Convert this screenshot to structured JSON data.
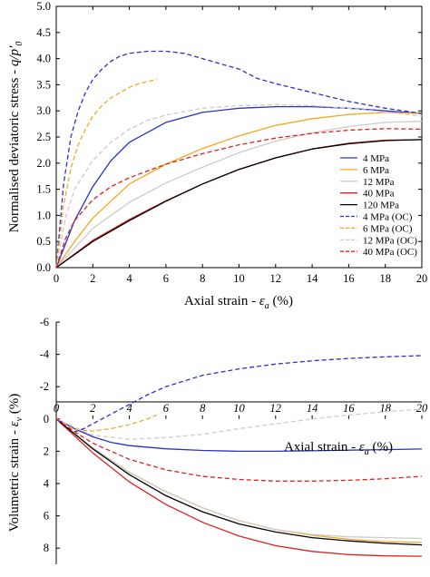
{
  "chart_data": [
    {
      "type": "line",
      "ylabel": "Normalised deviatoric stress - q/p'0",
      "ylabel_parts": {
        "prefix": "Normalised deviatoric stress - ",
        "var": "q/p′",
        "sub": "0"
      },
      "xlabel": "Axial strain - εa (%)",
      "xlabel_parts": {
        "prefix": "Axial strain - ",
        "var": "ε",
        "sub": "a",
        "suffix": " (%)"
      },
      "xlim": [
        0,
        20
      ],
      "ylim": [
        0,
        5
      ],
      "xticks": [
        "0",
        "2",
        "4",
        "6",
        "8",
        "10",
        "12",
        "14",
        "16",
        "18",
        "20"
      ],
      "yticks": [
        "0.0",
        "0.5",
        "1.0",
        "1.5",
        "2.0",
        "2.5",
        "3.0",
        "3.5",
        "4.0",
        "4.5",
        "5.0"
      ],
      "legend_position": "right",
      "series": [
        {
          "name": "4 MPa",
          "color": "#2a32c8",
          "dash": false,
          "x": [
            0,
            0.5,
            1,
            2,
            3,
            4,
            6,
            8,
            10,
            12,
            14,
            16,
            18,
            20
          ],
          "y": [
            0,
            0.45,
            0.9,
            1.55,
            2.05,
            2.4,
            2.78,
            2.97,
            3.05,
            3.08,
            3.08,
            3.05,
            3.0,
            2.95
          ]
        },
        {
          "name": "6 MPa",
          "color": "#f5a623",
          "dash": false,
          "x": [
            0,
            1,
            2,
            4,
            6,
            8,
            10,
            12,
            14,
            16,
            18,
            20
          ],
          "y": [
            0,
            0.5,
            0.95,
            1.6,
            1.98,
            2.28,
            2.52,
            2.72,
            2.85,
            2.93,
            2.97,
            2.95
          ]
        },
        {
          "name": "12 MPa",
          "color": "#cccccc",
          "dash": false,
          "x": [
            0,
            2,
            4,
            6,
            8,
            10,
            12,
            14,
            16,
            18,
            20
          ],
          "y": [
            0,
            0.75,
            1.25,
            1.62,
            1.92,
            2.2,
            2.42,
            2.58,
            2.7,
            2.78,
            2.8
          ]
        },
        {
          "name": "40 MPa",
          "color": "#e02020",
          "dash": false,
          "x": [
            0,
            2,
            4,
            6,
            8,
            10,
            12,
            14,
            16,
            18,
            20
          ],
          "y": [
            0,
            0.52,
            0.92,
            1.28,
            1.6,
            1.88,
            2.1,
            2.27,
            2.38,
            2.44,
            2.45
          ]
        },
        {
          "name": "120 MPa",
          "color": "#000000",
          "dash": false,
          "x": [
            0,
            2,
            4,
            6,
            8,
            10,
            12,
            14,
            16,
            18,
            20
          ],
          "y": [
            0,
            0.5,
            0.9,
            1.27,
            1.6,
            1.88,
            2.1,
            2.27,
            2.37,
            2.43,
            2.45
          ]
        },
        {
          "name": "4 MPa (OC)",
          "color": "#2a32c8",
          "dash": true,
          "x": [
            0,
            0.4,
            0.8,
            1.2,
            1.6,
            2,
            2.5,
            3,
            3.5,
            4,
            5,
            6,
            7,
            8,
            9,
            10,
            11,
            12,
            14,
            16,
            18,
            20
          ],
          "y": [
            0,
            1.6,
            2.5,
            3.0,
            3.35,
            3.6,
            3.8,
            3.95,
            4.05,
            4.1,
            4.14,
            4.14,
            4.1,
            4.0,
            3.9,
            3.8,
            3.62,
            3.52,
            3.35,
            3.18,
            3.05,
            2.95
          ]
        },
        {
          "name": "6 MPa (OC)",
          "color": "#f5a623",
          "dash": true,
          "x": [
            0,
            0.4,
            0.8,
            1.2,
            1.6,
            2,
            2.5,
            3,
            3.5,
            4,
            4.5,
            5,
            5.5
          ],
          "y": [
            0,
            1.2,
            1.9,
            2.35,
            2.65,
            2.9,
            3.1,
            3.25,
            3.35,
            3.45,
            3.52,
            3.56,
            3.6
          ]
        },
        {
          "name": "12 MPa (OC)",
          "color": "#cccccc",
          "dash": true,
          "x": [
            0,
            0.5,
            1,
            2,
            3,
            4,
            5,
            6,
            8,
            10,
            12,
            14,
            16,
            18,
            20
          ],
          "y": [
            0,
            0.95,
            1.5,
            2.05,
            2.4,
            2.65,
            2.82,
            2.92,
            3.05,
            3.1,
            3.12,
            3.1,
            3.05,
            2.98,
            2.9
          ]
        },
        {
          "name": "40 MPa (OC)",
          "color": "#e02020",
          "dash": true,
          "x": [
            0,
            0.5,
            1,
            2,
            3,
            4,
            6,
            8,
            10,
            12,
            14,
            16,
            18,
            20
          ],
          "y": [
            0,
            0.55,
            0.9,
            1.3,
            1.55,
            1.72,
            1.98,
            2.18,
            2.35,
            2.48,
            2.57,
            2.63,
            2.66,
            2.65
          ]
        }
      ]
    },
    {
      "type": "line",
      "ylabel": "Volumetric strain - εv (%)",
      "ylabel_parts": {
        "prefix": "Volumetric strain - ",
        "var": "ε",
        "sub": "v",
        "suffix": " (%)"
      },
      "xlabel": "Axial strain - εa (%)",
      "xlabel_parts": {
        "prefix": "Axial strain - ",
        "var": "ε",
        "sub": "a",
        "suffix": " (%)"
      },
      "xlim": [
        0,
        20
      ],
      "ylim": [
        -6,
        9
      ],
      "y_inverted": true,
      "xticks": [
        "0",
        "2",
        "4",
        "6",
        "8",
        "10",
        "12",
        "14",
        "16",
        "18",
        "20"
      ],
      "yticks": [
        "-6",
        "-4",
        "-2",
        "0",
        "2",
        "4",
        "6",
        "8"
      ],
      "series": [
        {
          "name": "4 MPa",
          "color": "#2a32c8",
          "dash": false,
          "x": [
            0,
            1,
            2,
            3,
            4,
            6,
            8,
            10,
            12,
            14,
            16,
            18,
            20
          ],
          "y": [
            0,
            0.6,
            1.1,
            1.45,
            1.65,
            1.85,
            1.95,
            2.0,
            2.0,
            1.97,
            1.93,
            1.9,
            1.86
          ]
        },
        {
          "name": "6 MPa",
          "color": "#f5a623",
          "dash": false,
          "x": [
            0,
            2,
            4,
            6,
            8,
            10,
            12,
            14,
            16,
            18,
            20
          ],
          "y": [
            0,
            1.8,
            3.3,
            4.5,
            5.5,
            6.3,
            6.85,
            7.2,
            7.45,
            7.6,
            7.65
          ]
        },
        {
          "name": "12 MPa",
          "color": "#cccccc",
          "dash": false,
          "x": [
            0,
            2,
            4,
            6,
            8,
            10,
            12,
            14,
            16,
            18,
            20
          ],
          "y": [
            0,
            1.8,
            3.3,
            4.5,
            5.5,
            6.3,
            6.85,
            7.15,
            7.3,
            7.35,
            7.4
          ]
        },
        {
          "name": "40 MPa",
          "color": "#e02020",
          "dash": false,
          "x": [
            0,
            2,
            4,
            6,
            8,
            10,
            12,
            14,
            16,
            18,
            20
          ],
          "y": [
            0,
            2.1,
            3.9,
            5.3,
            6.4,
            7.25,
            7.85,
            8.2,
            8.4,
            8.48,
            8.5
          ]
        },
        {
          "name": "120 MPa",
          "color": "#000000",
          "dash": false,
          "x": [
            0,
            2,
            4,
            6,
            8,
            10,
            12,
            14,
            16,
            18,
            20
          ],
          "y": [
            0,
            1.85,
            3.45,
            4.75,
            5.75,
            6.5,
            7.0,
            7.35,
            7.55,
            7.7,
            7.8
          ]
        },
        {
          "name": "4 MPa (OC)",
          "color": "#2a32c8",
          "dash": true,
          "x": [
            0,
            1,
            1.5,
            2,
            2.5,
            3,
            3.5,
            4,
            5,
            6,
            8,
            10,
            12,
            14,
            16,
            18,
            20
          ],
          "y": [
            0,
            0.8,
            0.6,
            0.3,
            0.0,
            -0.3,
            -0.6,
            -0.9,
            -1.5,
            -2.0,
            -2.7,
            -3.1,
            -3.4,
            -3.6,
            -3.75,
            -3.85,
            -3.92
          ]
        },
        {
          "name": "6 MPa (OC)",
          "color": "#f5a623",
          "dash": true,
          "x": [
            0,
            1,
            2,
            3,
            4,
            5,
            5.5
          ],
          "y": [
            0,
            0.65,
            0.75,
            0.6,
            0.35,
            0.0,
            -0.25
          ]
        },
        {
          "name": "12 MPa (OC)",
          "color": "#cccccc",
          "dash": true,
          "x": [
            0,
            2,
            4,
            6,
            8,
            10,
            12,
            14,
            16,
            18,
            20
          ],
          "y": [
            0,
            1.0,
            1.25,
            1.15,
            0.95,
            0.6,
            0.3,
            0.0,
            -0.25,
            -0.45,
            -0.6
          ]
        },
        {
          "name": "40 MPa (OC)",
          "color": "#e02020",
          "dash": true,
          "x": [
            0,
            1,
            2,
            4,
            6,
            8,
            10,
            12,
            14,
            16,
            18,
            20
          ],
          "y": [
            0,
            0.8,
            1.5,
            2.5,
            3.15,
            3.55,
            3.75,
            3.85,
            3.85,
            3.8,
            3.7,
            3.55
          ]
        }
      ]
    }
  ]
}
